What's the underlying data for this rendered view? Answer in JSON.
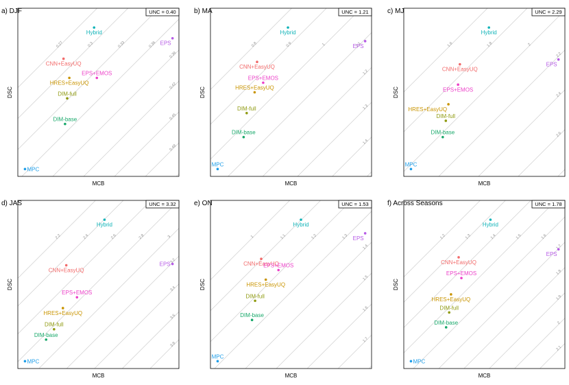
{
  "colors": {
    "MPC": "#1f9ee8",
    "DIM-base": "#18a86a",
    "DIM-full": "#8f9a10",
    "HRES+EasyUQ": "#c99400",
    "EPS+EMOS": "#ec3fc8",
    "CNN+EasyUQ": "#f26a6a",
    "Hybrid": "#10b3b8",
    "EPS": "#b65ae6"
  },
  "chart_data": [
    {
      "type": "scatter",
      "title": "a) DJF",
      "xlabel": "MCB",
      "ylabel": "DSC",
      "unc_label": "UNC = 0.40",
      "grid": "diagonal isopleths",
      "iso_labels": [
        "0.27",
        "0.3",
        "0.33",
        "0.36",
        "0.39",
        "0.42",
        "0.45",
        "0.48",
        "0.51"
      ],
      "points": [
        {
          "name": "Hybrid",
          "x": 0.472,
          "y": 0.905,
          "label_pos": "below"
        },
        {
          "name": "EPS",
          "x": 0.985,
          "y": 0.838,
          "label_pos": "below-left"
        },
        {
          "name": "CNN+EasyUQ",
          "x": 0.272,
          "y": 0.71,
          "label_pos": "below"
        },
        {
          "name": "EPS+EMOS",
          "x": 0.49,
          "y": 0.59,
          "label_pos": "above"
        },
        {
          "name": "HRES+EasyUQ",
          "x": 0.31,
          "y": 0.59,
          "label_pos": "below"
        },
        {
          "name": "DIM-full",
          "x": 0.296,
          "y": 0.462,
          "label_pos": "above"
        },
        {
          "name": "DIM-base",
          "x": 0.282,
          "y": 0.302,
          "label_pos": "above"
        },
        {
          "name": "MPC",
          "x": 0.02,
          "y": 0.02,
          "label_pos": "right"
        }
      ]
    },
    {
      "type": "scatter",
      "title": "b) MA",
      "xlabel": "MCB",
      "ylabel": "DSC",
      "unc_label": "UNC = 1.21",
      "grid": "diagonal isopleths",
      "iso_labels": [
        "0.8",
        "0.9",
        "1",
        "1.1",
        "1.2",
        "1.3",
        "1.4",
        "1.5"
      ],
      "points": [
        {
          "name": "Hybrid",
          "x": 0.48,
          "y": 0.905,
          "label_pos": "below"
        },
        {
          "name": "EPS",
          "x": 0.985,
          "y": 0.82,
          "label_pos": "below-left"
        },
        {
          "name": "CNN+EasyUQ",
          "x": 0.278,
          "y": 0.69,
          "label_pos": "below"
        },
        {
          "name": "EPS+EMOS",
          "x": 0.318,
          "y": 0.56,
          "label_pos": "above"
        },
        {
          "name": "HRES+EasyUQ",
          "x": 0.262,
          "y": 0.5,
          "label_pos": "above"
        },
        {
          "name": "DIM-full",
          "x": 0.21,
          "y": 0.37,
          "label_pos": "above"
        },
        {
          "name": "DIM-base",
          "x": 0.19,
          "y": 0.22,
          "label_pos": "above"
        },
        {
          "name": "MPC",
          "x": 0.02,
          "y": 0.02,
          "label_pos": "above"
        }
      ]
    },
    {
      "type": "scatter",
      "title": "c) MJ",
      "xlabel": "MCB",
      "ylabel": "DSC",
      "unc_label": "UNC = 2.29",
      "grid": "diagonal isopleths",
      "iso_labels": [
        "1.6",
        "1.8",
        "2",
        "2.2",
        "2.4",
        "2.6",
        "2.8"
      ],
      "points": [
        {
          "name": "Hybrid",
          "x": 0.53,
          "y": 0.905,
          "label_pos": "below"
        },
        {
          "name": "EPS",
          "x": 0.985,
          "y": 0.705,
          "label_pos": "below-left"
        },
        {
          "name": "CNN+EasyUQ",
          "x": 0.34,
          "y": 0.675,
          "label_pos": "below"
        },
        {
          "name": "EPS+EMOS",
          "x": 0.328,
          "y": 0.548,
          "label_pos": "below"
        },
        {
          "name": "HRES+EasyUQ",
          "x": 0.265,
          "y": 0.425,
          "label_pos": "below-left"
        },
        {
          "name": "DIM-full",
          "x": 0.248,
          "y": 0.322,
          "label_pos": "above"
        },
        {
          "name": "DIM-base",
          "x": 0.228,
          "y": 0.22,
          "label_pos": "above"
        },
        {
          "name": "MPC",
          "x": 0.02,
          "y": 0.02,
          "label_pos": "above"
        }
      ]
    },
    {
      "type": "scatter",
      "title": "d) JAS",
      "xlabel": "MCB",
      "ylabel": "DSC",
      "unc_label": "UNC = 3.32",
      "grid": "diagonal isopleths",
      "iso_labels": [
        "2.2",
        "2.4",
        "2.6",
        "2.8",
        "3",
        "3.2",
        "3.4",
        "3.6",
        "3.8",
        "4"
      ],
      "points": [
        {
          "name": "Hybrid",
          "x": 0.54,
          "y": 0.905,
          "label_pos": "below"
        },
        {
          "name": "EPS",
          "x": 0.985,
          "y": 0.628,
          "label_pos": "left"
        },
        {
          "name": "CNN+EasyUQ",
          "x": 0.29,
          "y": 0.62,
          "label_pos": "below"
        },
        {
          "name": "EPS+EMOS",
          "x": 0.36,
          "y": 0.42,
          "label_pos": "above"
        },
        {
          "name": "HRES+EasyUQ",
          "x": 0.268,
          "y": 0.352,
          "label_pos": "below"
        },
        {
          "name": "DIM-full",
          "x": 0.21,
          "y": 0.22,
          "label_pos": "above"
        },
        {
          "name": "DIM-base",
          "x": 0.158,
          "y": 0.155,
          "label_pos": "above"
        },
        {
          "name": "MPC",
          "x": 0.02,
          "y": 0.02,
          "label_pos": "right"
        }
      ]
    },
    {
      "type": "scatter",
      "title": "e) ON",
      "xlabel": "MCB",
      "ylabel": "DSC",
      "unc_label": "UNC = 1.53",
      "grid": "diagonal isopleths",
      "iso_labels": [
        "1",
        "1.1",
        "1.2",
        "1.3",
        "1.4",
        "1.5",
        "1.6",
        "1.7",
        "1.8"
      ],
      "points": [
        {
          "name": "Hybrid",
          "x": 0.565,
          "y": 0.905,
          "label_pos": "below"
        },
        {
          "name": "EPS",
          "x": 0.985,
          "y": 0.82,
          "label_pos": "below-left"
        },
        {
          "name": "CNN+EasyUQ",
          "x": 0.305,
          "y": 0.66,
          "label_pos": "below"
        },
        {
          "name": "EPS+EMOS",
          "x": 0.418,
          "y": 0.59,
          "label_pos": "above"
        },
        {
          "name": "HRES+EasyUQ",
          "x": 0.335,
          "y": 0.53,
          "label_pos": "below"
        },
        {
          "name": "DIM-full",
          "x": 0.265,
          "y": 0.398,
          "label_pos": "above"
        },
        {
          "name": "DIM-base",
          "x": 0.245,
          "y": 0.278,
          "label_pos": "above"
        },
        {
          "name": "MPC",
          "x": 0.02,
          "y": 0.02,
          "label_pos": "above"
        }
      ]
    },
    {
      "type": "scatter",
      "title": "f) Across Seasons",
      "xlabel": "MCB",
      "ylabel": "DSC",
      "unc_label": "UNC = 1.78",
      "grid": "diagonal isopleths",
      "iso_labels": [
        "1.2",
        "1.3",
        "1.4",
        "1.5",
        "1.6",
        "1.7",
        "1.8",
        "1.9",
        "2",
        "2.1",
        "2.2"
      ],
      "points": [
        {
          "name": "Hybrid",
          "x": 0.54,
          "y": 0.905,
          "label_pos": "below"
        },
        {
          "name": "EPS",
          "x": 0.985,
          "y": 0.72,
          "label_pos": "below-left"
        },
        {
          "name": "CNN+EasyUQ",
          "x": 0.332,
          "y": 0.67,
          "label_pos": "below"
        },
        {
          "name": "EPS+EMOS",
          "x": 0.35,
          "y": 0.54,
          "label_pos": "above"
        },
        {
          "name": "HRES+EasyUQ",
          "x": 0.282,
          "y": 0.438,
          "label_pos": "below"
        },
        {
          "name": "DIM-full",
          "x": 0.27,
          "y": 0.325,
          "label_pos": "above"
        },
        {
          "name": "DIM-base",
          "x": 0.25,
          "y": 0.232,
          "label_pos": "above"
        },
        {
          "name": "MPC",
          "x": 0.02,
          "y": 0.02,
          "label_pos": "right"
        }
      ]
    }
  ]
}
